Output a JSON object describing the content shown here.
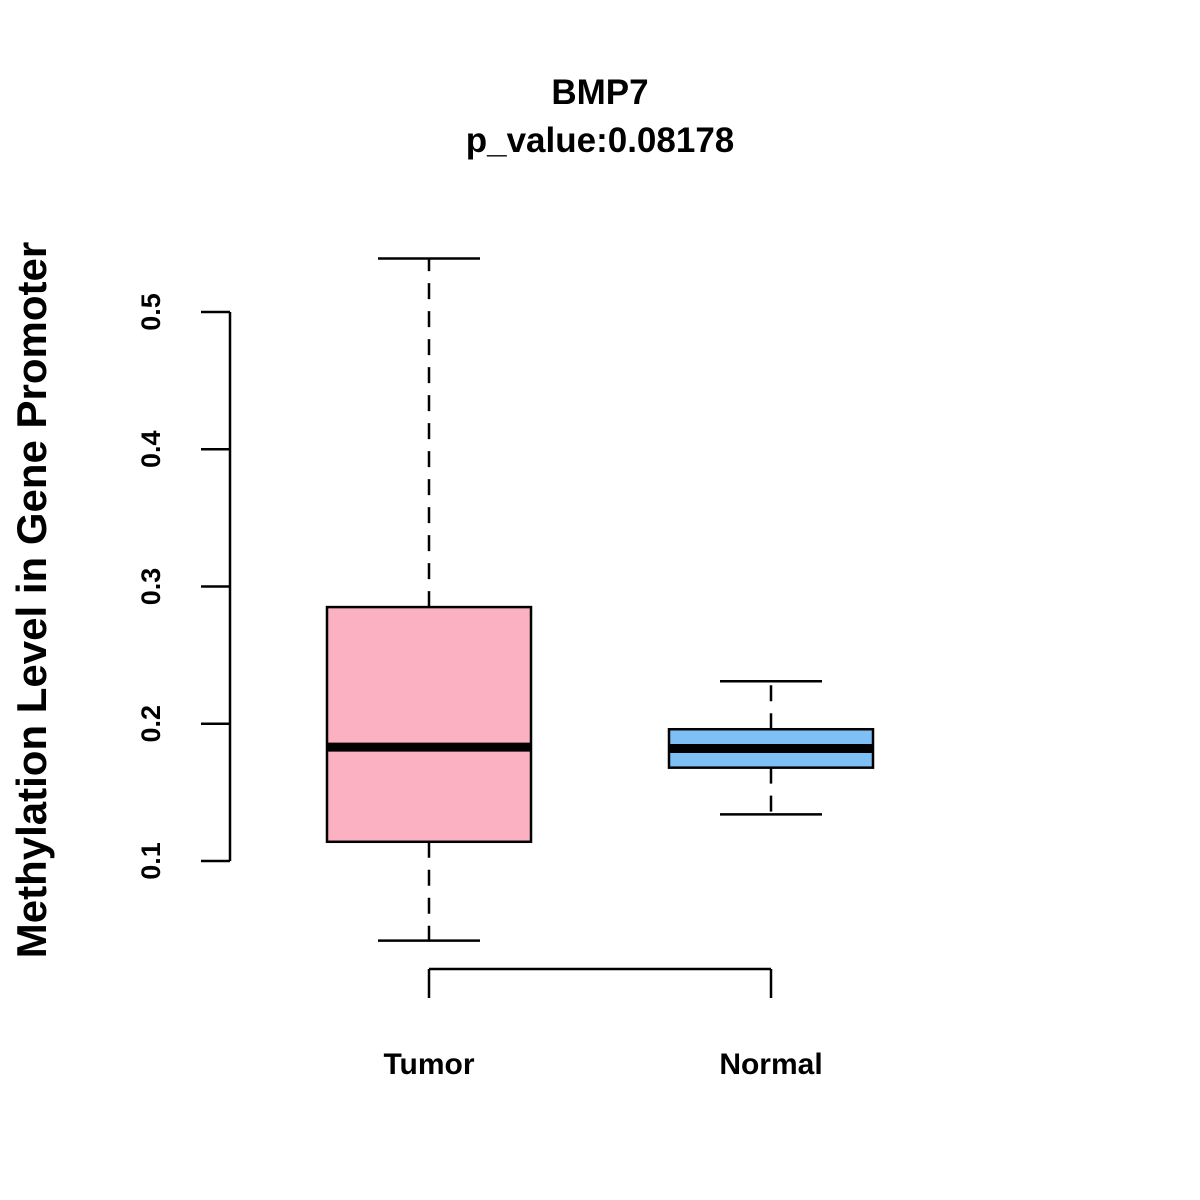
{
  "chart_data": {
    "type": "boxplot",
    "title": "BMP7",
    "subtitle": "p_value:0.08178",
    "ylabel": "Methylation Level in Gene Promoter",
    "xlabel": "",
    "yticks": [
      0.1,
      0.2,
      0.3,
      0.4,
      0.5
    ],
    "ytick_labels": [
      "0.1",
      "0.2",
      "0.3",
      "0.4",
      "0.5"
    ],
    "categories": [
      "Tumor",
      "Normal"
    ],
    "boxes": [
      {
        "name": "Tumor",
        "color": "#FCB1C3",
        "whisker_low": 0.042,
        "q1": 0.114,
        "median": 0.183,
        "q3": 0.285,
        "whisker_high": 0.539
      },
      {
        "name": "Normal",
        "color": "#7EC0F5",
        "whisker_low": 0.134,
        "q1": 0.168,
        "median": 0.182,
        "q3": 0.196,
        "whisker_high": 0.231
      }
    ],
    "grid": false
  }
}
